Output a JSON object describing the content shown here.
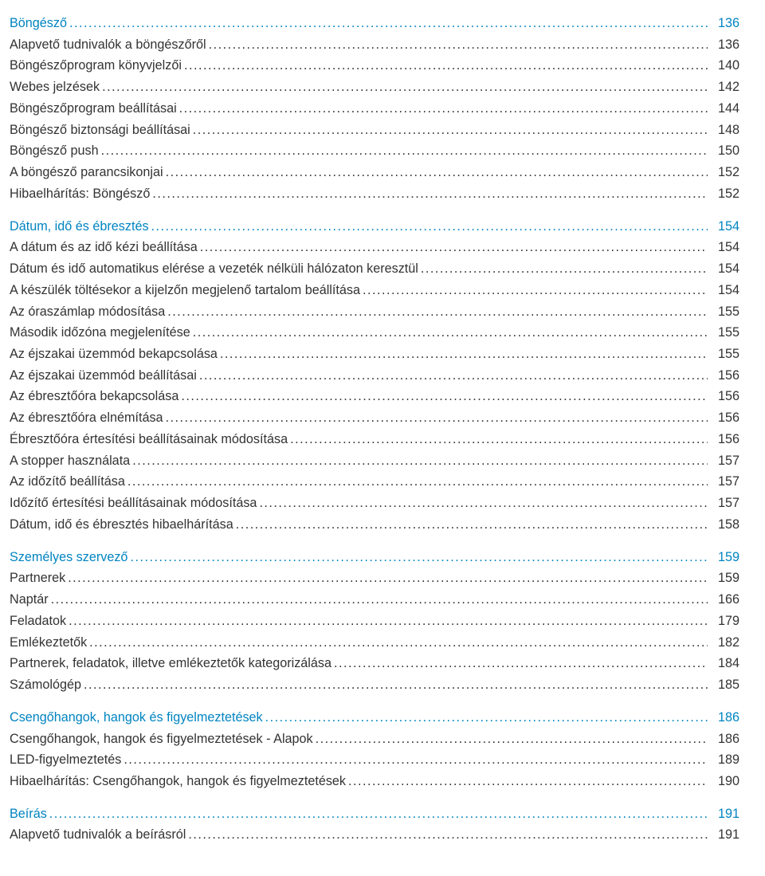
{
  "colors": {
    "heading": "#0084c1",
    "entry": "#333333",
    "background": "#ffffff"
  },
  "typography": {
    "font_family": "Arial, Helvetica, sans-serif",
    "font_size_pt": 12,
    "line_height": 1.65
  },
  "leader_char": ".",
  "sections": [
    {
      "heading": {
        "title": "Böngésző",
        "page": "136"
      },
      "entries": [
        {
          "title": "Alapvető tudnivalók a böngészőről",
          "page": "136"
        },
        {
          "title": "Böngészőprogram könyvjelzői",
          "page": "140"
        },
        {
          "title": "Webes jelzések",
          "page": "142"
        },
        {
          "title": "Böngészőprogram beállításai",
          "page": "144"
        },
        {
          "title": "Böngésző biztonsági beállításai",
          "page": "148"
        },
        {
          "title": "Böngésző push",
          "page": "150"
        },
        {
          "title": "A böngésző parancsikonjai",
          "page": "152"
        },
        {
          "title": "Hibaelhárítás: Böngésző",
          "page": "152"
        }
      ]
    },
    {
      "heading": {
        "title": "Dátum, idő és ébresztés",
        "page": "154"
      },
      "entries": [
        {
          "title": "A dátum és az idő kézi beállítása",
          "page": "154"
        },
        {
          "title": "Dátum és idő automatikus elérése a vezeték nélküli hálózaton keresztül",
          "page": "154"
        },
        {
          "title": "A készülék töltésekor a kijelzőn megjelenő tartalom beállítása",
          "page": "154"
        },
        {
          "title": "Az óraszámlap módosítása",
          "page": "155"
        },
        {
          "title": "Második időzóna megjelenítése",
          "page": "155"
        },
        {
          "title": "Az éjszakai üzemmód bekapcsolása",
          "page": "155"
        },
        {
          "title": "Az éjszakai üzemmód beállításai",
          "page": "156"
        },
        {
          "title": "Az ébresztőóra bekapcsolása",
          "page": "156"
        },
        {
          "title": "Az ébresztőóra elnémítása",
          "page": "156"
        },
        {
          "title": "Ébresztőóra értesítési beállításainak módosítása",
          "page": "156"
        },
        {
          "title": "A stopper használata",
          "page": "157"
        },
        {
          "title": "Az időzítő beállítása",
          "page": "157"
        },
        {
          "title": "Időzítő értesítési beállításainak módosítása",
          "page": "157"
        },
        {
          "title": "Dátum, idő és ébresztés hibaelhárítása",
          "page": "158"
        }
      ]
    },
    {
      "heading": {
        "title": "Személyes szervező",
        "page": "159"
      },
      "entries": [
        {
          "title": "Partnerek",
          "page": "159"
        },
        {
          "title": "Naptár",
          "page": "166"
        },
        {
          "title": "Feladatok",
          "page": "179"
        },
        {
          "title": "Emlékeztetők",
          "page": "182"
        },
        {
          "title": "Partnerek, feladatok, illetve emlékeztetők kategorizálása",
          "page": "184"
        },
        {
          "title": "Számológép",
          "page": "185"
        }
      ]
    },
    {
      "heading": {
        "title": "Csengőhangok, hangok és figyelmeztetések",
        "page": "186"
      },
      "entries": [
        {
          "title": "Csengőhangok, hangok és figyelmeztetések - Alapok",
          "page": "186"
        },
        {
          "title": "LED-figyelmeztetés",
          "page": "189"
        },
        {
          "title": "Hibaelhárítás: Csengőhangok, hangok és figyelmeztetések",
          "page": "190"
        }
      ]
    },
    {
      "heading": {
        "title": "Beírás",
        "page": "191"
      },
      "entries": [
        {
          "title": "Alapvető tudnivalók a beírásról",
          "page": "191"
        }
      ]
    }
  ]
}
